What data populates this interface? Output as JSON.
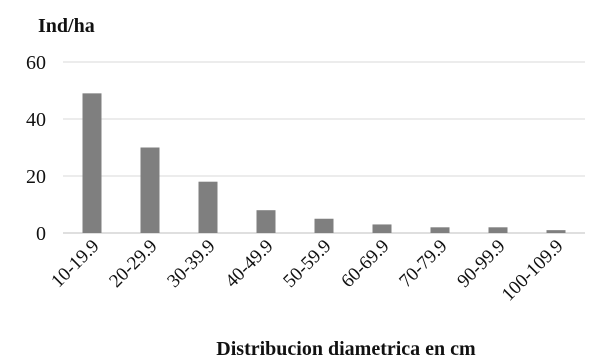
{
  "chart_data": {
    "type": "bar",
    "ylabel": "Ind/ha",
    "xlabel": "Distribucion diametrica en cm",
    "categories": [
      "10-19.9",
      "20-29.9",
      "30-39.9",
      "40-49.9",
      "50-59.9",
      "60-69.9",
      "70-79.9",
      "90-99.9",
      "100-109.9"
    ],
    "values": [
      49,
      30,
      18,
      8,
      5,
      3,
      2,
      2,
      1
    ],
    "ylim": [
      0,
      60
    ],
    "yticks": [
      0,
      20,
      40,
      60
    ],
    "grid": true,
    "colors": {
      "bar": "#7f7f7f",
      "grid": "#d9d9d9",
      "axis": "#bfbfbf",
      "text": "#111111"
    }
  }
}
